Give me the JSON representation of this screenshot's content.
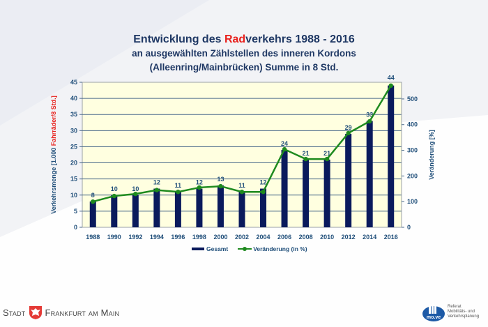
{
  "title": {
    "line1_pre": "Entwicklung des ",
    "line1_red": "Rad",
    "line1_post": "verkehrs 1988 - 2016",
    "line2": "an ausgewählten Zählstellen des inneren Kordons",
    "line3": "(Alleenring/Mainbrücken) Summe in 8 Std."
  },
  "chart_data": {
    "type": "bar",
    "title": "Entwicklung des Radverkehrs 1988 - 2016",
    "categories": [
      "1988",
      "1990",
      "1992",
      "1994",
      "1996",
      "1998",
      "2000",
      "2002",
      "2004",
      "2006",
      "2008",
      "2010",
      "2012",
      "2014",
      "2016"
    ],
    "series": [
      {
        "name": "Gesamt",
        "type": "bar",
        "axis": "left",
        "color": "#0a1a5c",
        "values": [
          8,
          10,
          10,
          12,
          11,
          12,
          13,
          11,
          12,
          24,
          21,
          21,
          29,
          33,
          44
        ]
      },
      {
        "name": "Veränderung (in %)",
        "type": "line",
        "axis": "right",
        "color": "#1e8a1e",
        "values": [
          100,
          122,
          130,
          145,
          138,
          155,
          160,
          138,
          138,
          304,
          266,
          266,
          367,
          413,
          552
        ]
      }
    ],
    "data_labels": [
      "8",
      "10",
      "10",
      "12",
      "11",
      "12",
      "13",
      "11",
      "12",
      "24",
      "21",
      "21",
      "29",
      "33",
      "44"
    ],
    "ylabel_left_pre": "Verkehrsmenge [1.000 ",
    "ylabel_left_red": "Fahrräder/8 Std.]",
    "ylabel_right": "Veränderung [%]",
    "ylim_left": [
      0,
      45
    ],
    "yticks_left": [
      "0",
      "5",
      "10",
      "15",
      "20",
      "25",
      "30",
      "35",
      "40",
      "45"
    ],
    "ylim_right": [
      0,
      565
    ],
    "yticks_right": [
      "0",
      "100",
      "200",
      "300",
      "400",
      "500"
    ],
    "grid": true,
    "legend_position": "bottom"
  },
  "legend": {
    "bar": "Gesamt",
    "line": "Veränderung (in %)"
  },
  "footer": {
    "left_word1": "Stadt",
    "left_word2": "Frankfurt am Main",
    "right_logo": "mo.ve",
    "right_line1": "Referat",
    "right_line2": "Mobilitäts- und",
    "right_line3": "Verkehrsplanung"
  },
  "colors": {
    "plot_bg": "#ffffe0",
    "bar": "#0a1a5c",
    "line": "#1e8a1e",
    "text": "#1f4e79",
    "accent_red": "#e8201c"
  }
}
